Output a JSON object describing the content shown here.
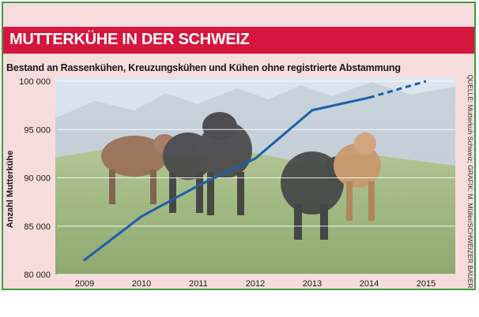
{
  "header": {
    "title": "MUTTERKÜHE IN DER SCHWEIZ",
    "subtitle": "Bestand an Rassenkühen, Kreuzungskühen und Kühen ohne registrierte Abstammung"
  },
  "source": "QUELLE: Mutterkuh Schweiz; GRAFIK: M. Müller/SCHWEIZER BAUER",
  "colors": {
    "accent_red": "#d5173f",
    "line_blue": "#1e5fa8",
    "border_green": "#3f9a40",
    "panel_pink": "#f7dcdc"
  },
  "chart_data": {
    "type": "line",
    "title": "MUTTERKÜHE IN DER SCHWEIZ",
    "subtitle": "Bestand an Rassenkühen, Kreuzungskühen und Kühen ohne registrierte Abstammung",
    "xlabel": "",
    "ylabel": "Anzahl Mutterkühe",
    "categories": [
      "2009",
      "2010",
      "2011",
      "2012",
      "2013",
      "2014",
      "2015"
    ],
    "ylim": [
      80000,
      100000
    ],
    "yticks": [
      80000,
      85000,
      90000,
      95000,
      100000
    ],
    "ytick_labels": [
      "80 000",
      "85 000",
      "90 000",
      "95 000",
      "100 000"
    ],
    "grid": true,
    "series": [
      {
        "values": [
          81500,
          86000,
          89200,
          92000,
          97000,
          98300,
          100000
        ],
        "dashed_from_index": 5
      }
    ]
  }
}
